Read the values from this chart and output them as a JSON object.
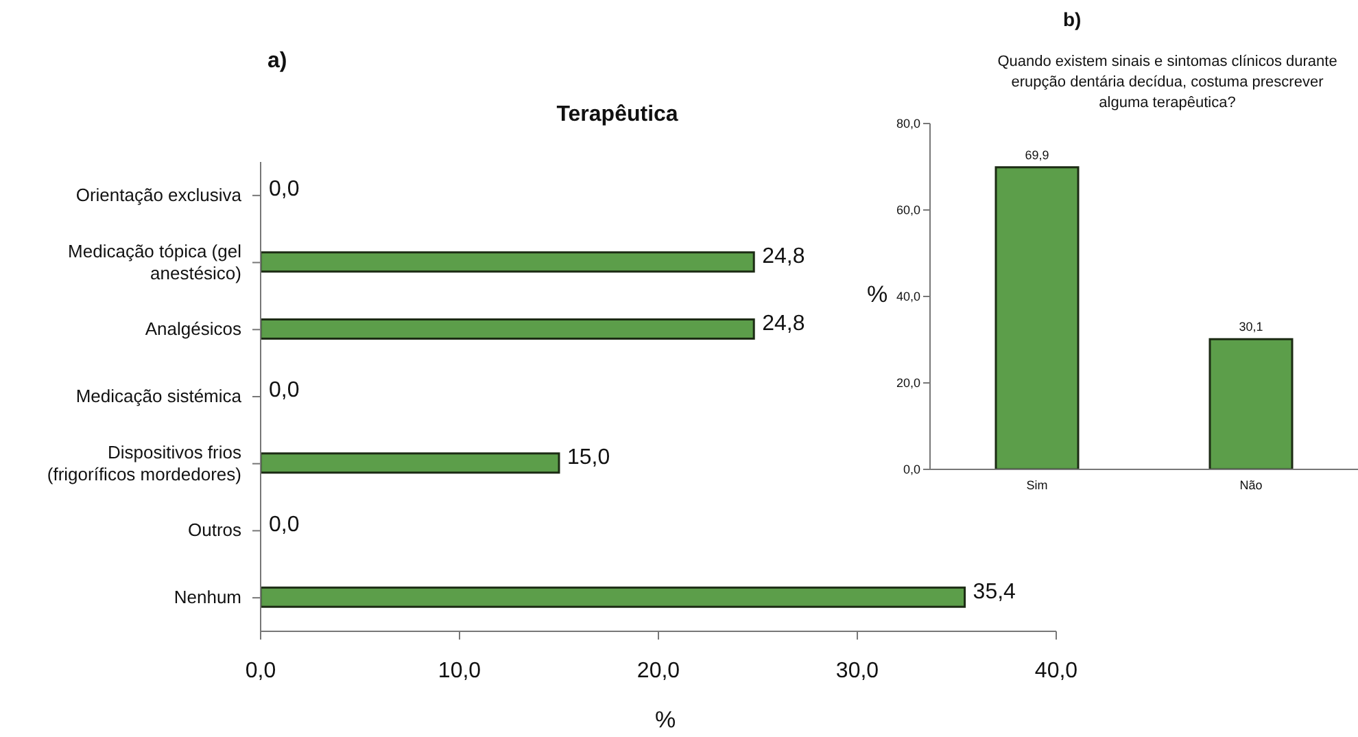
{
  "chart_data": [
    {
      "type": "bar",
      "orientation": "horizontal",
      "title": "Terapêutica",
      "xlabel": "%",
      "annotations": [
        "a)"
      ],
      "categories": [
        "Orientação exclusiva",
        "Medicação tópica (gel anestésico)",
        "Analgésicos",
        "Medicação sistémica",
        "Dispositivos frios (frigoríficos mordedores)",
        "Outros",
        "Nenhum"
      ],
      "values": [
        0,
        24.8,
        24.8,
        0,
        15.0,
        0,
        35.4
      ],
      "color": "#5c9e4a",
      "value_labels": [
        "0,0",
        "24,8",
        "24,8",
        "0,0",
        "15,0",
        "0,0",
        "35,4"
      ],
      "xlim": [
        0,
        40
      ],
      "xticks": [
        {
          "value": 0,
          "label": "0,0"
        },
        {
          "value": 10,
          "label": "10,0"
        },
        {
          "value": 20,
          "label": "20,0"
        },
        {
          "value": 30,
          "label": "30,0"
        },
        {
          "value": 40,
          "label": "40,0"
        }
      ],
      "grid": false,
      "legend": false
    },
    {
      "type": "bar",
      "title": "Quando existem sinais e sintomas clínicos durante erupção dentária decídua, costuma prescrever alguma terapêutica?",
      "ylabel": "%",
      "annotations": [
        "b)"
      ],
      "categories": [
        "Sim",
        "Não"
      ],
      "values": [
        69.9,
        30.1
      ],
      "color": "#5c9e4a",
      "value_labels": [
        "69,9",
        "30,1"
      ],
      "ylim": [
        0,
        80
      ],
      "yticks": [
        {
          "value": 0,
          "label": "0,0"
        },
        {
          "value": 20,
          "label": "20,0"
        },
        {
          "value": 40,
          "label": "40,0"
        },
        {
          "value": 60,
          "label": "60,0"
        },
        {
          "value": 80,
          "label": "80,0"
        }
      ],
      "grid": false,
      "legend": false
    }
  ]
}
